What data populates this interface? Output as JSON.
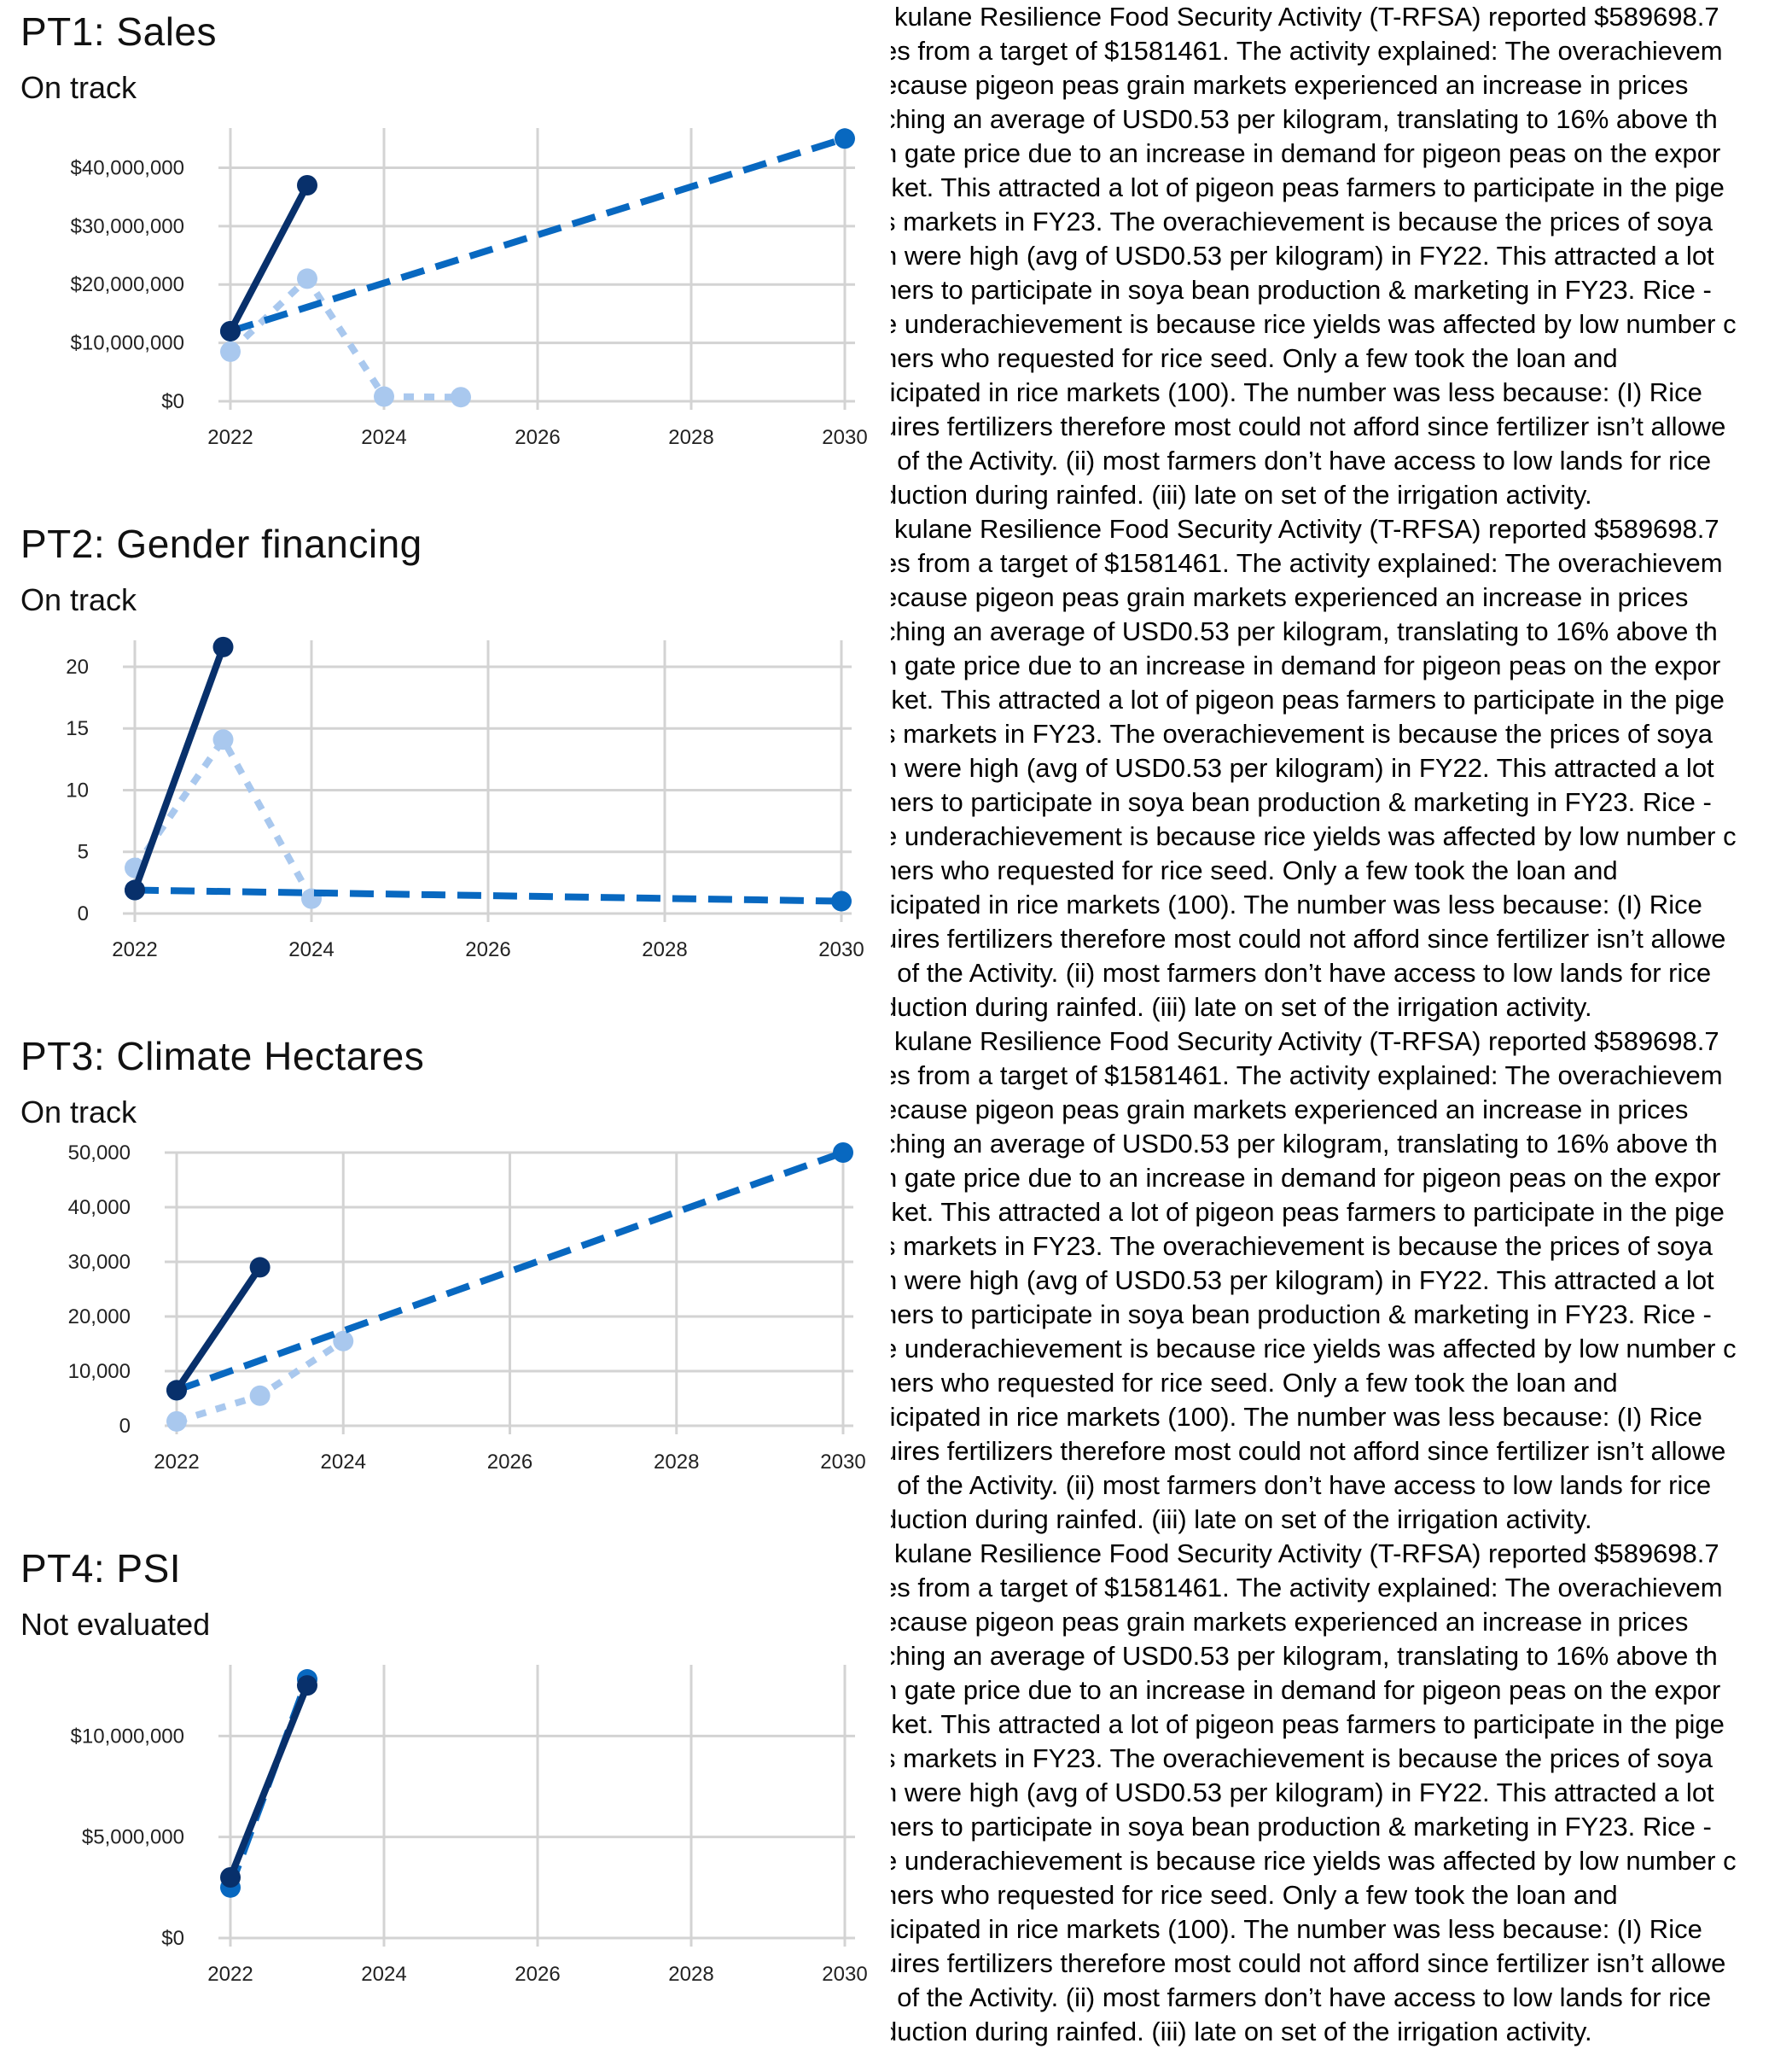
{
  "colors": {
    "actual": "#08306b",
    "target": "#0868c0",
    "light": "#a9c8ee",
    "grid": "#d3d3d3"
  },
  "charts": [
    {
      "title": "PT1: Sales",
      "status": "On track",
      "narrative_lines": [
        "kulane Resilience Food Security Activity (T-RFSA) reported $589698.7",
        "es from a target of $1581461. The activity explained: The overachievem",
        "ecause pigeon peas grain markets experienced an increase in prices",
        "ching an average of USD0.53 per kilogram, translating to 16% above th",
        "n gate price due to an increase in demand for pigeon peas on the expor",
        "rket. This attracted a lot of pigeon peas farmers to participate in the pige",
        "s markets in FY23. The overachievement is because the prices of soya",
        "n were high (avg of USD0.53 per kilogram) in FY22. This attracted a lot",
        "ners to participate in soya bean production & marketing in FY23. Rice -",
        "e underachievement is because rice yields was affected by low number c",
        "ners who requested for rice seed. Only a few took the loan and",
        "ticipated in rice markets (100). The number was less because: (I) Rice",
        "uires fertilizers therefore most could not afford since fertilizer isn’t allowe",
        "t of the Activity. (ii) most farmers don’t have access to low lands for rice",
        "duction during rainfed. (iii) late on set of the irrigation activity."
      ]
    },
    {
      "title": "PT2: Gender financing",
      "status": "On track",
      "narrative_lines": [
        "kulane Resilience Food Security Activity (T-RFSA) reported $589698.7",
        "es from a target of $1581461. The activity explained: The overachievem",
        "ecause pigeon peas grain markets experienced an increase in prices",
        "ching an average of USD0.53 per kilogram, translating to 16% above th",
        "n gate price due to an increase in demand for pigeon peas on the expor",
        "rket. This attracted a lot of pigeon peas farmers to participate in the pige",
        "s markets in FY23. The overachievement is because the prices of soya",
        "n were high (avg of USD0.53 per kilogram) in FY22. This attracted a lot",
        "ners to participate in soya bean production & marketing in FY23. Rice -",
        "e underachievement is because rice yields was affected by low number c",
        "ners who requested for rice seed. Only a few took the loan and",
        "ticipated in rice markets (100). The number was less because: (I) Rice",
        "uires fertilizers therefore most could not afford since fertilizer isn’t allowe",
        "t of the Activity. (ii) most farmers don’t have access to low lands for rice",
        "duction during rainfed. (iii) late on set of the irrigation activity."
      ]
    },
    {
      "title": "PT3: Climate Hectares",
      "status": "On track",
      "narrative_lines": [
        "kulane Resilience Food Security Activity (T-RFSA) reported $589698.7",
        "es from a target of $1581461. The activity explained: The overachievem",
        "ecause pigeon peas grain markets experienced an increase in prices",
        "ching an average of USD0.53 per kilogram, translating to 16% above th",
        "n gate price due to an increase in demand for pigeon peas on the expor",
        "rket. This attracted a lot of pigeon peas farmers to participate in the pige",
        "s markets in FY23. The overachievement is because the prices of soya",
        "n were high (avg of USD0.53 per kilogram) in FY22. This attracted a lot",
        "ners to participate in soya bean production & marketing in FY23. Rice -",
        "e underachievement is because rice yields was affected by low number c",
        "ners who requested for rice seed. Only a few took the loan and",
        "ticipated in rice markets (100). The number was less because: (I) Rice",
        "uires fertilizers therefore most could not afford since fertilizer isn’t allowe",
        "t of the Activity. (ii) most farmers don’t have access to low lands for rice",
        "duction during rainfed. (iii) late on set of the irrigation activity."
      ]
    },
    {
      "title": "PT4: PSI",
      "status": "Not evaluated",
      "narrative_lines": [
        "kulane Resilience Food Security Activity (T-RFSA) reported $589698.7",
        "es from a target of $1581461. The activity explained: The overachievem",
        "ecause pigeon peas grain markets experienced an increase in prices",
        "ching an average of USD0.53 per kilogram, translating to 16% above th",
        "n gate price due to an increase in demand for pigeon peas on the expor",
        "rket. This attracted a lot of pigeon peas farmers to participate in the pige",
        "s markets in FY23. The overachievement is because the prices of soya",
        "n were high (avg of USD0.53 per kilogram) in FY22. This attracted a lot",
        "ners to participate in soya bean production & marketing in FY23. Rice -",
        "e underachievement is because rice yields was affected by low number c",
        "ners who requested for rice seed. Only a few took the loan and",
        "ticipated in rice markets (100). The number was less because: (I) Rice",
        "uires fertilizers therefore most could not afford since fertilizer isn’t allowe",
        "t of the Activity. (ii) most farmers don’t have access to low lands for rice",
        "duction during rainfed. (iii) late on set of the irrigation activity."
      ]
    }
  ],
  "chart_data": [
    {
      "type": "line",
      "title": "PT1: Sales",
      "xlim": [
        2022,
        2030
      ],
      "ylim": [
        0,
        45000000
      ],
      "x_ticks": [
        2022,
        2024,
        2026,
        2028,
        2030
      ],
      "x_tick_labels": [
        "2022",
        "2024",
        "2026",
        "2028",
        "2030"
      ],
      "y_ticks": [
        0,
        10000000,
        20000000,
        30000000,
        40000000
      ],
      "y_tick_labels": [
        "$0",
        "$10,000,000",
        "$20,000,000",
        "$30,000,000",
        "$40,000,000"
      ],
      "grid": true,
      "series": [
        {
          "style": "solid",
          "color": "actual",
          "x": [
            2022,
            2023
          ],
          "y": [
            12000000,
            37000000
          ]
        },
        {
          "style": "dashed",
          "color": "target",
          "x": [
            2022,
            2030
          ],
          "y": [
            12000000,
            45000000
          ]
        },
        {
          "style": "dotted",
          "color": "light",
          "x": [
            2022,
            2023,
            2024,
            2025
          ],
          "y": [
            8500000,
            21000000,
            800000,
            700000
          ]
        }
      ]
    },
    {
      "type": "line",
      "title": "PT2: Gender financing",
      "xlim": [
        2022,
        2030
      ],
      "ylim": [
        0,
        21.5
      ],
      "x_ticks": [
        2022,
        2024,
        2026,
        2028,
        2030
      ],
      "x_tick_labels": [
        "2022",
        "2024",
        "2026",
        "2028",
        "2030"
      ],
      "y_ticks": [
        0,
        5,
        10,
        15,
        20
      ],
      "y_tick_labels": [
        "0",
        "5",
        "10",
        "15",
        "20"
      ],
      "grid": true,
      "series": [
        {
          "style": "solid",
          "color": "actual",
          "x": [
            2022,
            2023
          ],
          "y": [
            1.9,
            21.6
          ]
        },
        {
          "style": "dashed",
          "color": "target",
          "x": [
            2022,
            2030
          ],
          "y": [
            1.9,
            1.0
          ]
        },
        {
          "style": "dotted",
          "color": "light",
          "x": [
            2022,
            2023,
            2024
          ],
          "y": [
            3.7,
            14.1,
            1.2
          ]
        }
      ]
    },
    {
      "type": "line",
      "title": "PT3: Climate Hectares",
      "xlim": [
        2022,
        2030
      ],
      "ylim": [
        0,
        50000
      ],
      "x_ticks": [
        2022,
        2024,
        2026,
        2028,
        2030
      ],
      "x_tick_labels": [
        "2022",
        "2024",
        "2026",
        "2028",
        "2030"
      ],
      "y_ticks": [
        0,
        10000,
        20000,
        30000,
        40000,
        50000
      ],
      "y_tick_labels": [
        "0",
        "10,000",
        "20,000",
        "30,000",
        "40,000",
        "50,000"
      ],
      "grid": true,
      "series": [
        {
          "style": "solid",
          "color": "actual",
          "x": [
            2022,
            2023
          ],
          "y": [
            6500,
            29000
          ]
        },
        {
          "style": "dashed",
          "color": "target",
          "x": [
            2022,
            2030
          ],
          "y": [
            6500,
            50000
          ]
        },
        {
          "style": "dotted",
          "color": "light",
          "x": [
            2022,
            2023,
            2024
          ],
          "y": [
            800,
            5500,
            15500
          ]
        }
      ]
    },
    {
      "type": "line",
      "title": "PT4: PSI",
      "xlim": [
        2022,
        2030
      ],
      "ylim": [
        0,
        13000000
      ],
      "x_ticks": [
        2022,
        2024,
        2026,
        2028,
        2030
      ],
      "x_tick_labels": [
        "2022",
        "2024",
        "2026",
        "2028",
        "2030"
      ],
      "y_ticks": [
        0,
        5000000,
        10000000
      ],
      "y_tick_labels": [
        "$0",
        "$5,000,000",
        "$10,000,000"
      ],
      "grid": true,
      "series": [
        {
          "style": "solid",
          "color": "actual",
          "x": [
            2022,
            2023
          ],
          "y": [
            3000000,
            12500000
          ]
        },
        {
          "style": "dashed",
          "color": "target",
          "x": [
            2022,
            2023
          ],
          "y": [
            2500000,
            12800000
          ]
        }
      ]
    }
  ]
}
